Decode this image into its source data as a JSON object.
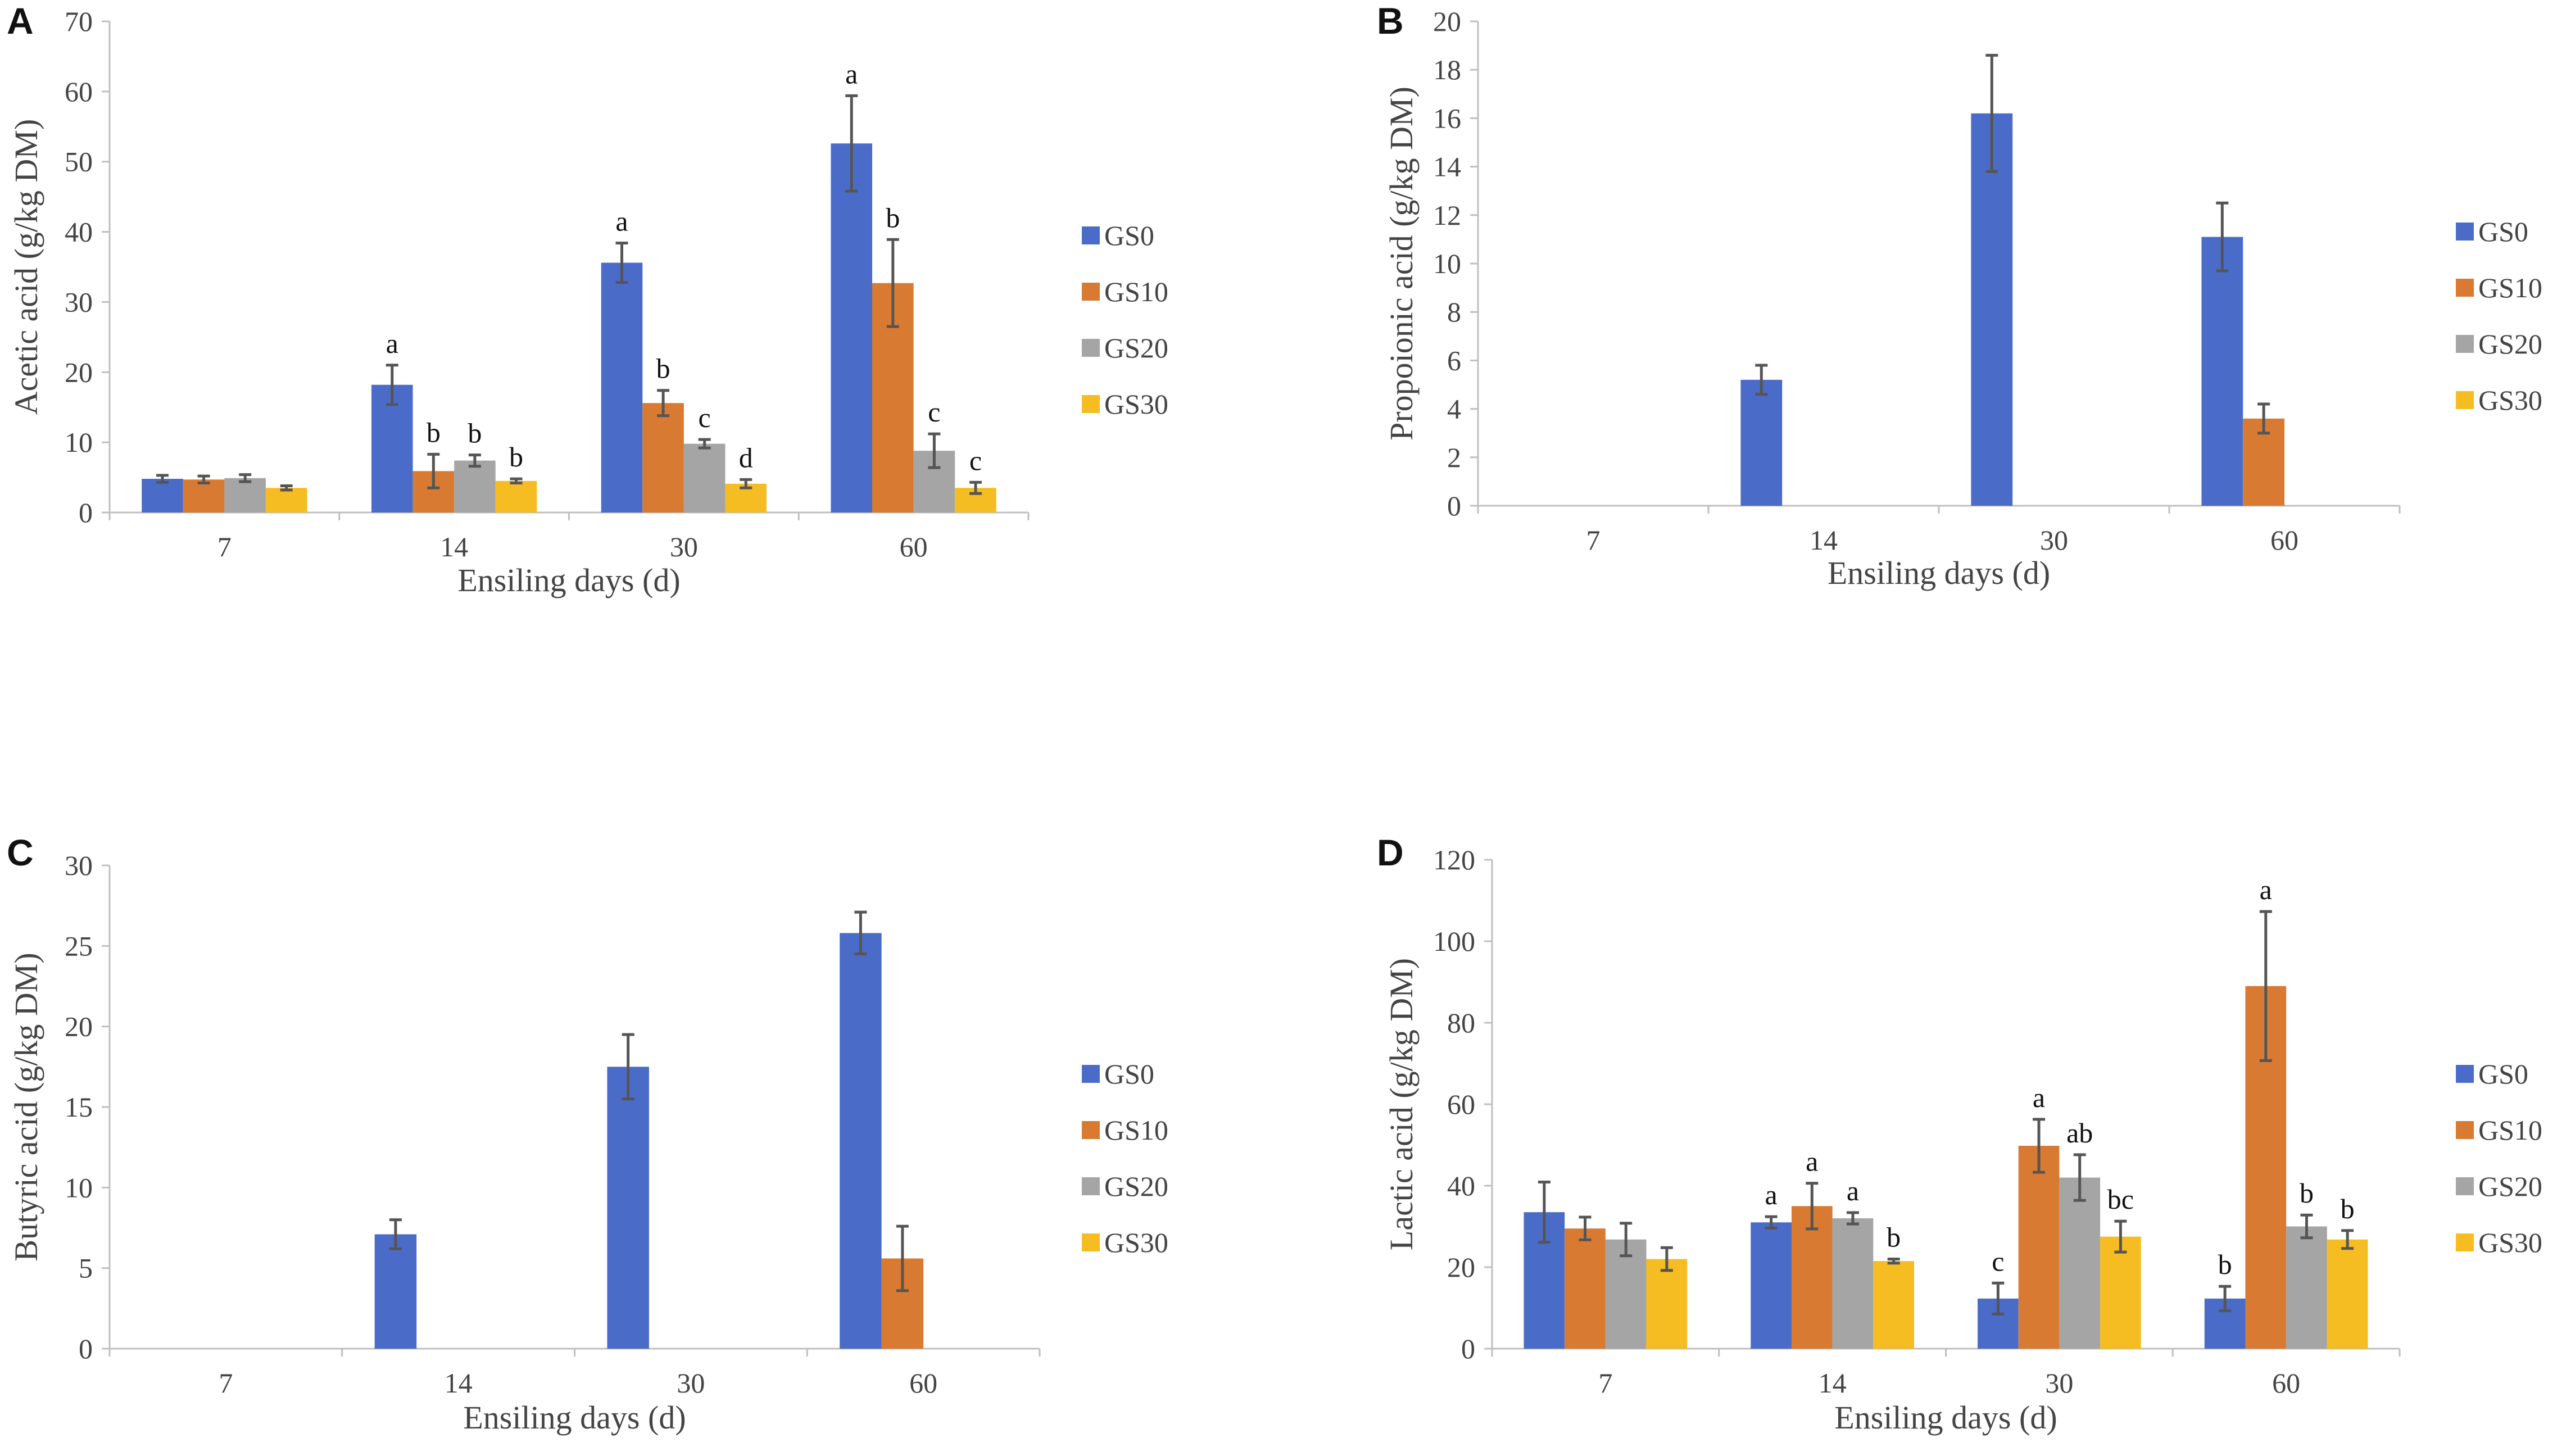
{
  "chart_data": [
    {
      "panel": "A",
      "type": "bar",
      "categories": [
        "7",
        "14",
        "30",
        "60"
      ],
      "xlabel": "Ensiling days (d)",
      "ylabel": "Acetic acid (g/kg DM)",
      "ylim": [
        0,
        70
      ],
      "ytick_step": 10,
      "yticks": [
        "0",
        "10",
        "20",
        "30",
        "40",
        "50",
        "60",
        "70"
      ],
      "series": [
        {
          "name": "GS0",
          "values": [
            4.8,
            18.2,
            35.6,
            52.6
          ],
          "errors": [
            0.5,
            2.8,
            2.8,
            6.8
          ],
          "labels": [
            "",
            "a",
            "a",
            "a"
          ]
        },
        {
          "name": "GS10",
          "values": [
            4.7,
            5.9,
            15.6,
            32.7
          ],
          "errors": [
            0.5,
            2.4,
            1.8,
            6.2
          ],
          "labels": [
            "",
            "b",
            "b",
            "b"
          ]
        },
        {
          "name": "GS20",
          "values": [
            4.9,
            7.4,
            9.8,
            8.8
          ],
          "errors": [
            0.5,
            0.8,
            0.6,
            2.4
          ],
          "labels": [
            "",
            "b",
            "c",
            "c"
          ]
        },
        {
          "name": "GS30",
          "values": [
            3.5,
            4.5,
            4.1,
            3.5
          ],
          "errors": [
            0.3,
            0.3,
            0.6,
            0.8
          ],
          "labels": [
            "",
            "b",
            "d",
            "c"
          ]
        }
      ]
    },
    {
      "panel": "B",
      "type": "bar",
      "categories": [
        "7",
        "14",
        "30",
        "60"
      ],
      "xlabel": "Ensiling days (d)",
      "ylabel": "Propoionic acid (g/kg DM)",
      "ylim": [
        0,
        20
      ],
      "ytick_step": 2,
      "yticks": [
        "0",
        "2",
        "4",
        "6",
        "8",
        "10",
        "12",
        "14",
        "16",
        "18",
        "20"
      ],
      "series": [
        {
          "name": "GS0",
          "values": [
            0,
            5.2,
            16.2,
            11.1
          ],
          "errors": [
            0,
            0.6,
            2.4,
            1.4
          ],
          "labels": [
            "",
            "",
            "",
            ""
          ]
        },
        {
          "name": "GS10",
          "values": [
            0,
            0,
            0,
            3.6
          ],
          "errors": [
            0,
            0,
            0,
            0.6
          ],
          "labels": [
            "",
            "",
            "",
            ""
          ]
        },
        {
          "name": "GS20",
          "values": [
            0,
            0,
            0,
            0
          ],
          "errors": [
            0,
            0,
            0,
            0
          ],
          "labels": [
            "",
            "",
            "",
            ""
          ]
        },
        {
          "name": "GS30",
          "values": [
            0,
            0,
            0,
            0
          ],
          "errors": [
            0,
            0,
            0,
            0
          ],
          "labels": [
            "",
            "",
            "",
            ""
          ]
        }
      ]
    },
    {
      "panel": "C",
      "type": "bar",
      "categories": [
        "7",
        "14",
        "30",
        "60"
      ],
      "xlabel": "Ensiling days (d)",
      "ylabel": "Butyric acid (g/kg DM)",
      "ylim": [
        0,
        30
      ],
      "ytick_step": 5,
      "yticks": [
        "0",
        "5",
        "10",
        "15",
        "20",
        "25",
        "30"
      ],
      "series": [
        {
          "name": "GS0",
          "values": [
            0,
            7.1,
            17.5,
            25.8
          ],
          "errors": [
            0,
            0.9,
            2.0,
            1.3
          ],
          "labels": [
            "",
            "",
            "",
            ""
          ]
        },
        {
          "name": "GS10",
          "values": [
            0,
            0,
            0,
            5.6
          ],
          "errors": [
            0,
            0,
            0,
            2.0
          ],
          "labels": [
            "",
            "",
            "",
            ""
          ]
        },
        {
          "name": "GS20",
          "values": [
            0,
            0,
            0,
            0
          ],
          "errors": [
            0,
            0,
            0,
            0
          ],
          "labels": [
            "",
            "",
            "",
            ""
          ]
        },
        {
          "name": "GS30",
          "values": [
            0,
            0,
            0,
            0
          ],
          "errors": [
            0,
            0,
            0,
            0
          ],
          "labels": [
            "",
            "",
            "",
            ""
          ]
        }
      ]
    },
    {
      "panel": "D",
      "type": "bar",
      "categories": [
        "7",
        "14",
        "30",
        "60"
      ],
      "xlabel": "Ensiling days (d)",
      "ylabel": "Lactic acid (g/kg DM)",
      "ylim": [
        0,
        120
      ],
      "ytick_step": 20,
      "yticks": [
        "0",
        "20",
        "40",
        "60",
        "80",
        "100",
        "120"
      ],
      "series": [
        {
          "name": "GS0",
          "values": [
            33.5,
            31.0,
            12.3,
            12.3
          ],
          "errors": [
            7.4,
            1.4,
            3.8,
            3.0
          ],
          "labels": [
            "",
            "a",
            "c",
            "b"
          ]
        },
        {
          "name": "GS10",
          "values": [
            29.5,
            35.0,
            49.8,
            89.0
          ],
          "errors": [
            2.8,
            5.6,
            6.5,
            18.3
          ],
          "labels": [
            "",
            "a",
            "a",
            "a"
          ]
        },
        {
          "name": "GS20",
          "values": [
            26.8,
            32.0,
            42.0,
            30.0
          ],
          "errors": [
            4.0,
            1.4,
            5.6,
            2.8
          ],
          "labels": [
            "",
            "a",
            "ab",
            "b"
          ]
        },
        {
          "name": "GS30",
          "values": [
            22.0,
            21.5,
            27.5,
            26.8
          ],
          "errors": [
            2.8,
            0.5,
            3.8,
            2.2
          ],
          "labels": [
            "",
            "b",
            "bc",
            "b"
          ]
        }
      ]
    }
  ],
  "colors": {
    "GS0": "#4a6cc8",
    "GS10": "#d97a32",
    "GS20": "#a5a5a5",
    "GS30": "#f5bd22",
    "axis": "#bfbfbf",
    "error_bar": "#555555"
  }
}
